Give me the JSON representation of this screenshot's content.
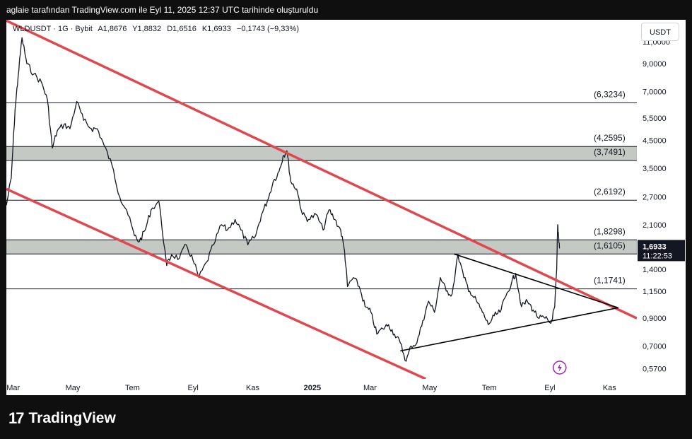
{
  "header": {
    "attribution": "aglaie tarafından TradingView.com ile Eyl 11, 2025 12:37 UTC tarihinde oluşturuldu"
  },
  "legend": {
    "symbol": "WLDUSDT · 1G · Bybit",
    "open": "A1,8676",
    "high": "Y1,8832",
    "low": "D1,6516",
    "close": "K1,6933",
    "change": "−0,1743 (−9,33%)"
  },
  "currency_button": "USDT",
  "branding": {
    "logo_text": "TradingView"
  },
  "colors": {
    "background": "#ffffff",
    "candles": "#131722",
    "channel": "#e0474f",
    "zone_fill": "#c5c9c4",
    "level_line": "#131722",
    "price_label_bg": "#131722",
    "event_icon": "#9c27b0"
  },
  "chart_data": {
    "type": "line",
    "scale": "log",
    "x_axis": {
      "ticks": [
        "Mar",
        "May",
        "Tem",
        "Eyl",
        "Kas",
        "2025",
        "Mar",
        "May",
        "Tem",
        "Eyl",
        "Kas"
      ],
      "range": [
        "2024-02-23",
        "2025-11-29"
      ]
    },
    "y_axis": {
      "ticks": [
        "11,0000",
        "9,0000",
        "7,0000",
        "5,5000",
        "4,5000",
        "3,5000",
        "2,7000",
        "2,1000",
        "1,4000",
        "1,1500",
        "0,9000",
        "0,7000",
        "0,5700"
      ],
      "range": [
        0.52,
        13.4
      ]
    },
    "series": [
      {
        "values": [
          [
            "2024-02-23",
            2.5
          ],
          [
            "2024-02-28",
            3.2
          ],
          [
            "2024-03-03",
            6.0
          ],
          [
            "2024-03-06",
            8.0
          ],
          [
            "2024-03-10",
            11.4
          ],
          [
            "2024-03-15",
            9.0
          ],
          [
            "2024-03-22",
            8.2
          ],
          [
            "2024-03-30",
            7.6
          ],
          [
            "2024-04-05",
            6.5
          ],
          [
            "2024-04-10",
            4.2
          ],
          [
            "2024-04-15",
            4.9
          ],
          [
            "2024-04-22",
            5.2
          ],
          [
            "2024-04-28",
            5.0
          ],
          [
            "2024-05-05",
            6.4
          ],
          [
            "2024-05-12",
            5.4
          ],
          [
            "2024-05-20",
            5.0
          ],
          [
            "2024-05-26",
            5.0
          ],
          [
            "2024-06-02",
            4.3
          ],
          [
            "2024-06-10",
            3.6
          ],
          [
            "2024-06-18",
            2.7
          ],
          [
            "2024-06-25",
            2.4
          ],
          [
            "2024-07-03",
            1.9
          ],
          [
            "2024-07-08",
            1.8
          ],
          [
            "2024-07-14",
            2.0
          ],
          [
            "2024-07-20",
            2.4
          ],
          [
            "2024-07-28",
            2.6
          ],
          [
            "2024-08-05",
            1.45
          ],
          [
            "2024-08-10",
            1.6
          ],
          [
            "2024-08-18",
            1.55
          ],
          [
            "2024-08-25",
            1.75
          ],
          [
            "2024-09-01",
            1.52
          ],
          [
            "2024-09-07",
            1.3
          ],
          [
            "2024-09-15",
            1.5
          ],
          [
            "2024-09-22",
            1.75
          ],
          [
            "2024-09-30",
            2.1
          ],
          [
            "2024-10-06",
            2.0
          ],
          [
            "2024-10-14",
            2.2
          ],
          [
            "2024-10-20",
            2.0
          ],
          [
            "2024-10-27",
            1.75
          ],
          [
            "2024-11-04",
            1.9
          ],
          [
            "2024-11-10",
            2.3
          ],
          [
            "2024-11-16",
            2.6
          ],
          [
            "2024-11-22",
            3.1
          ],
          [
            "2024-11-28",
            3.4
          ],
          [
            "2024-12-02",
            3.9
          ],
          [
            "2024-12-06",
            4.1
          ],
          [
            "2024-12-10",
            3.1
          ],
          [
            "2024-12-16",
            2.9
          ],
          [
            "2024-12-22",
            2.3
          ],
          [
            "2024-12-28",
            2.2
          ],
          [
            "2025-01-05",
            2.3
          ],
          [
            "2025-01-12",
            2.0
          ],
          [
            "2025-01-18",
            2.4
          ],
          [
            "2025-01-24",
            2.2
          ],
          [
            "2025-01-30",
            2.0
          ],
          [
            "2025-02-03",
            1.65
          ],
          [
            "2025-02-06",
            1.2
          ],
          [
            "2025-02-12",
            1.3
          ],
          [
            "2025-02-18",
            1.2
          ],
          [
            "2025-02-24",
            1.0
          ],
          [
            "2025-03-02",
            0.95
          ],
          [
            "2025-03-08",
            0.78
          ],
          [
            "2025-03-14",
            0.82
          ],
          [
            "2025-03-20",
            0.85
          ],
          [
            "2025-03-26",
            0.78
          ],
          [
            "2025-04-01",
            0.72
          ],
          [
            "2025-04-07",
            0.61
          ],
          [
            "2025-04-12",
            0.7
          ],
          [
            "2025-04-18",
            0.72
          ],
          [
            "2025-04-24",
            0.88
          ],
          [
            "2025-04-30",
            1.05
          ],
          [
            "2025-05-06",
            0.95
          ],
          [
            "2025-05-12",
            1.3
          ],
          [
            "2025-05-18",
            1.15
          ],
          [
            "2025-05-24",
            1.12
          ],
          [
            "2025-05-30",
            1.6
          ],
          [
            "2025-06-05",
            1.3
          ],
          [
            "2025-06-11",
            1.15
          ],
          [
            "2025-06-18",
            1.05
          ],
          [
            "2025-06-24",
            0.95
          ],
          [
            "2025-06-30",
            0.85
          ],
          [
            "2025-07-06",
            0.92
          ],
          [
            "2025-07-12",
            0.95
          ],
          [
            "2025-07-18",
            1.1
          ],
          [
            "2025-07-24",
            1.25
          ],
          [
            "2025-07-28",
            1.35
          ],
          [
            "2025-08-03",
            1.0
          ],
          [
            "2025-08-09",
            1.05
          ],
          [
            "2025-08-15",
            0.97
          ],
          [
            "2025-08-21",
            0.9
          ],
          [
            "2025-08-27",
            0.9
          ],
          [
            "2025-09-02",
            0.86
          ],
          [
            "2025-09-06",
            1.0
          ],
          [
            "2025-09-08",
            1.4
          ],
          [
            "2025-09-09",
            2.1
          ],
          [
            "2025-09-10",
            1.87
          ],
          [
            "2025-09-11",
            1.6933
          ]
        ]
      }
    ],
    "horizontal_levels": [
      {
        "label": "(6,3234)",
        "value": 6.3234
      },
      {
        "label": "(4,2595)",
        "value": 4.2595
      },
      {
        "label": "(3,7491)",
        "value": 3.7491
      },
      {
        "label": "(2,6192)",
        "value": 2.6192
      },
      {
        "label": "(1,8298)",
        "value": 1.8298
      },
      {
        "label": "(1,6105)",
        "value": 1.6105
      },
      {
        "label": "(1,1741)",
        "value": 1.1741
      }
    ],
    "zones": [
      {
        "from": 3.7491,
        "to": 4.2595
      },
      {
        "from": 1.6105,
        "to": 1.8298
      }
    ],
    "channel": {
      "upper": [
        [
          "2024-02-23",
          13.3
        ],
        [
          "2025-11-29",
          0.9
        ]
      ],
      "lower": [
        [
          "2024-02-23",
          2.9
        ],
        [
          "2025-04-27",
          0.52
        ]
      ]
    },
    "triangle": [
      [
        [
          "2025-04-01",
          0.67
        ],
        [
          "2025-11-10",
          0.99
        ]
      ],
      [
        [
          "2025-05-26",
          1.61
        ],
        [
          "2025-11-10",
          0.99
        ]
      ]
    ],
    "current_price": {
      "value": "1,6933",
      "countdown": "11:22:53"
    }
  }
}
